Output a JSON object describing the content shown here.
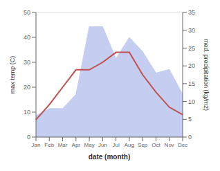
{
  "chart_data": {
    "type": "line",
    "categories": [
      "Jan",
      "Feb",
      "Mar",
      "Apr",
      "May",
      "Jun",
      "Jul",
      "Aug",
      "Sep",
      "Oct",
      "Nov",
      "Dec"
    ],
    "series": [
      {
        "type": "area",
        "color": "#c5cef0",
        "axis": "y2",
        "values": [
          6,
          8,
          8,
          12,
          31,
          31,
          22,
          28,
          24,
          18,
          19,
          12
        ]
      },
      {
        "type": "line",
        "color": "#c0504d",
        "values": [
          7,
          13,
          20,
          27,
          27,
          30,
          34,
          34,
          25,
          18,
          12,
          9
        ]
      }
    ],
    "xlabel": "date (month)",
    "ylabel": "max temp (C)",
    "y2label": "med. precipitation (kg/m2)",
    "ylim": [
      0,
      50
    ],
    "yticks": [
      0,
      10,
      20,
      30,
      40,
      50
    ],
    "y2lim": [
      0,
      35
    ],
    "y2ticks": [
      0,
      5,
      10,
      15,
      20,
      25,
      30,
      35
    ],
    "grid": true
  }
}
